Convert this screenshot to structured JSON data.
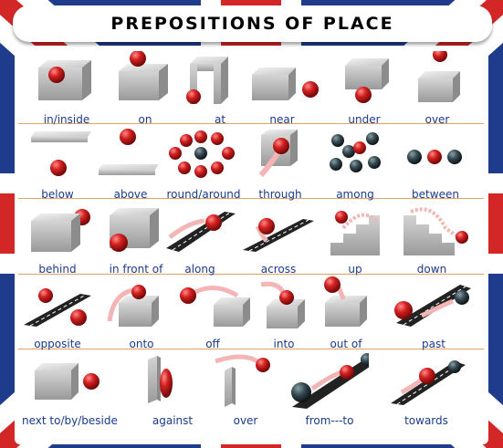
{
  "title": "PREPOSITIONS OF PLACE",
  "colors": {
    "flag_blue": "#1f3c8c",
    "flag_red": "#d32626",
    "label_blue": "#1a3a8c",
    "ball_red": "#cc1f1f",
    "separator": "#e8a060"
  },
  "rows": [
    [
      "in/inside",
      "on",
      "at",
      "near",
      "under",
      "over"
    ],
    [
      "below",
      "above",
      "round/around",
      "through",
      "among",
      "between"
    ],
    [
      "behind",
      "in front of",
      "along",
      "across",
      "up",
      "down"
    ],
    [
      "opposite",
      "onto",
      "off",
      "into",
      "out of",
      "past"
    ],
    [
      "next to/by/beside",
      "against",
      "over",
      "from---to",
      "towards"
    ]
  ]
}
